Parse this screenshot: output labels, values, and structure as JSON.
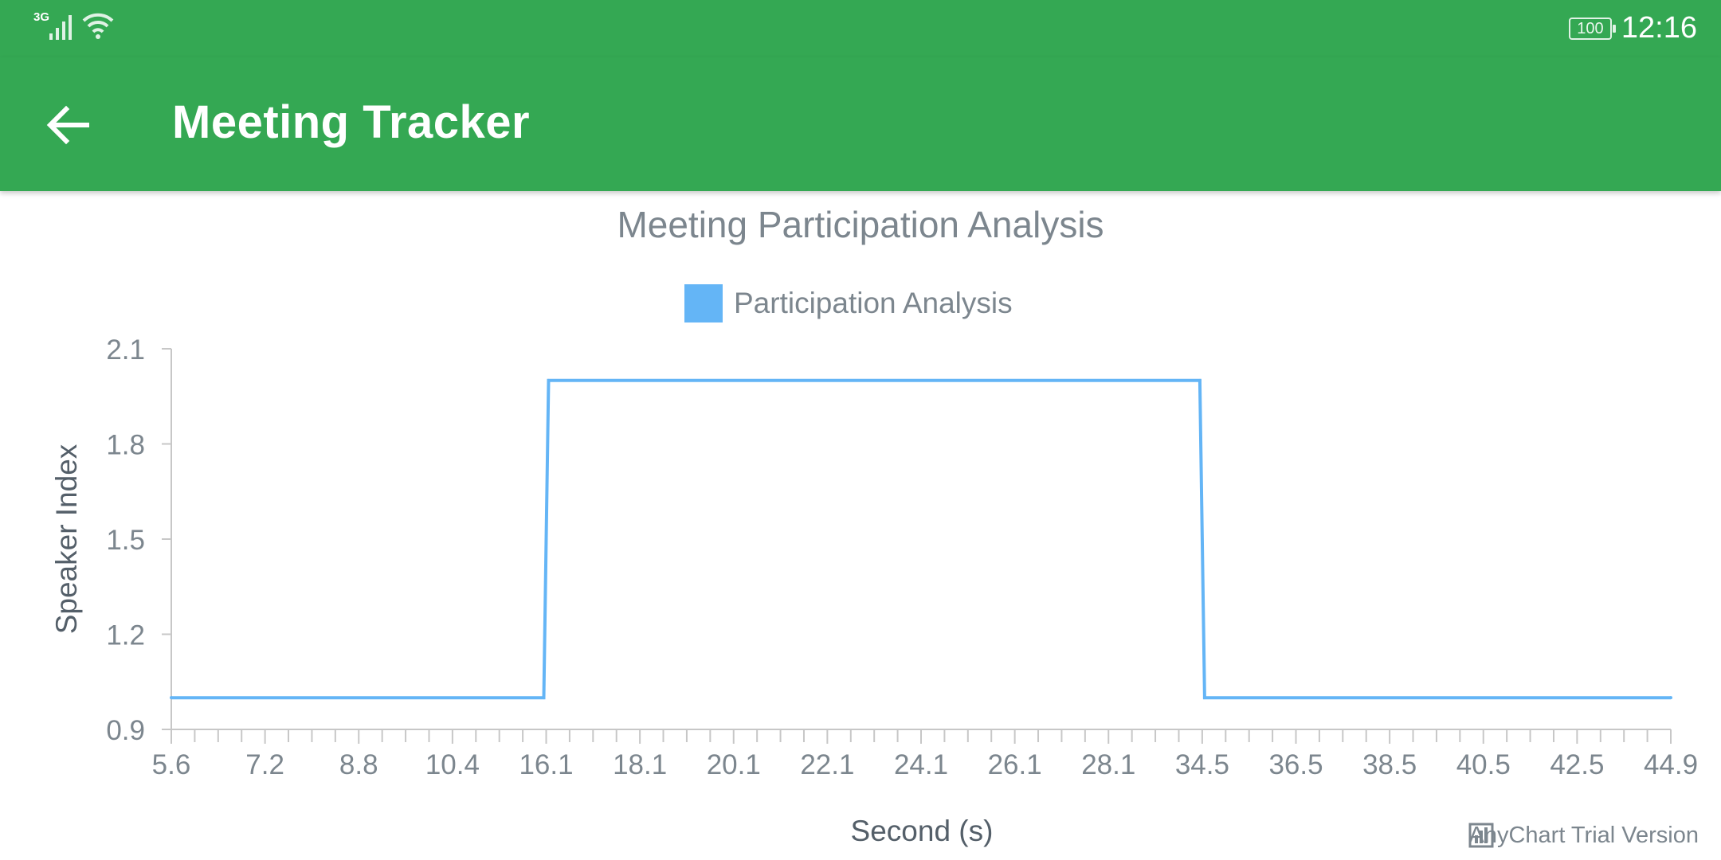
{
  "status_bar": {
    "network": "3G",
    "battery": "100",
    "time": "12:16"
  },
  "app_bar": {
    "title": "Meeting Tracker",
    "back_icon": "arrow-back-icon"
  },
  "colors": {
    "app_bar": "#34a853",
    "series": "#64b5f6",
    "axis": "#c7c7c7",
    "text": "#7c868e"
  },
  "watermark": "AnyChart Trial Version",
  "chart_data": {
    "type": "line",
    "step": true,
    "title": "Meeting Participation Analysis",
    "xlabel": "Second (s)",
    "ylabel": "Speaker Index",
    "legend": {
      "placement": "top-center"
    },
    "ylim": [
      0.9,
      2.1
    ],
    "y_ticks": [
      "0.9",
      "1.2",
      "1.5",
      "1.8",
      "2.1"
    ],
    "x_tick_labels": [
      "5.6",
      "7.2",
      "8.8",
      "10.4",
      "16.1",
      "18.1",
      "20.1",
      "22.1",
      "24.1",
      "26.1",
      "28.1",
      "34.5",
      "36.5",
      "38.5",
      "40.5",
      "42.5",
      "44.9"
    ],
    "grid": false,
    "series": [
      {
        "name": "Participation Analysis",
        "points": [
          {
            "x": "5.6",
            "y": 1
          },
          {
            "x": "16.1",
            "y": 1
          },
          {
            "x": "16.1",
            "y": 2
          },
          {
            "x": "34.5",
            "y": 2
          },
          {
            "x": "34.5",
            "y": 1
          },
          {
            "x": "44.9",
            "y": 1
          }
        ]
      }
    ]
  }
}
